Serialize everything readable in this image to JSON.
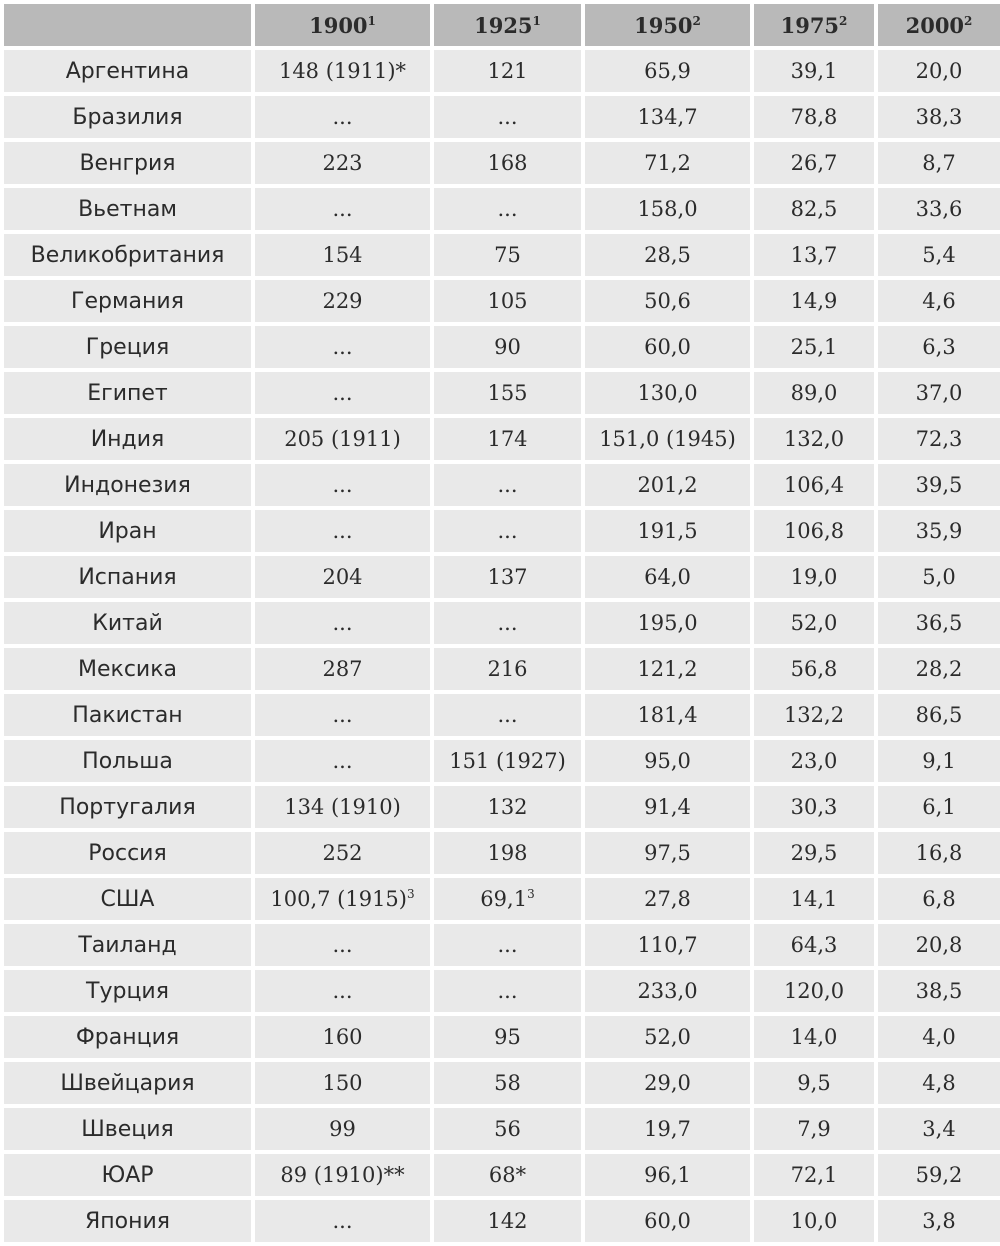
{
  "header": {
    "corner": "",
    "columns": [
      {
        "year": "1900",
        "note": "1"
      },
      {
        "year": "1925",
        "note": "1"
      },
      {
        "year": "1950",
        "note": "2"
      },
      {
        "year": "1975",
        "note": "2"
      },
      {
        "year": "2000",
        "note": "2"
      }
    ]
  },
  "rows": [
    {
      "country": "Аргентина",
      "cells": [
        {
          "v": "148 (1911)*",
          "sup": ""
        },
        {
          "v": "121",
          "sup": ""
        },
        {
          "v": "65,9",
          "sup": ""
        },
        {
          "v": "39,1",
          "sup": ""
        },
        {
          "v": "20,0",
          "sup": ""
        }
      ]
    },
    {
      "country": "Бразилия",
      "cells": [
        {
          "v": "...",
          "sup": ""
        },
        {
          "v": "...",
          "sup": ""
        },
        {
          "v": "134,7",
          "sup": ""
        },
        {
          "v": "78,8",
          "sup": ""
        },
        {
          "v": "38,3",
          "sup": ""
        }
      ]
    },
    {
      "country": "Венгрия",
      "cells": [
        {
          "v": "223",
          "sup": ""
        },
        {
          "v": "168",
          "sup": ""
        },
        {
          "v": "71,2",
          "sup": ""
        },
        {
          "v": "26,7",
          "sup": ""
        },
        {
          "v": "8,7",
          "sup": ""
        }
      ]
    },
    {
      "country": "Вьетнам",
      "cells": [
        {
          "v": "...",
          "sup": ""
        },
        {
          "v": "...",
          "sup": ""
        },
        {
          "v": "158,0",
          "sup": ""
        },
        {
          "v": "82,5",
          "sup": ""
        },
        {
          "v": "33,6",
          "sup": ""
        }
      ]
    },
    {
      "country": "Великобритания",
      "cells": [
        {
          "v": "154",
          "sup": ""
        },
        {
          "v": "75",
          "sup": ""
        },
        {
          "v": "28,5",
          "sup": ""
        },
        {
          "v": "13,7",
          "sup": ""
        },
        {
          "v": "5,4",
          "sup": ""
        }
      ]
    },
    {
      "country": "Германия",
      "cells": [
        {
          "v": "229",
          "sup": ""
        },
        {
          "v": "105",
          "sup": ""
        },
        {
          "v": "50,6",
          "sup": ""
        },
        {
          "v": "14,9",
          "sup": ""
        },
        {
          "v": "4,6",
          "sup": ""
        }
      ]
    },
    {
      "country": "Греция",
      "cells": [
        {
          "v": "...",
          "sup": ""
        },
        {
          "v": "90",
          "sup": ""
        },
        {
          "v": "60,0",
          "sup": ""
        },
        {
          "v": "25,1",
          "sup": ""
        },
        {
          "v": "6,3",
          "sup": ""
        }
      ]
    },
    {
      "country": "Египет",
      "cells": [
        {
          "v": "...",
          "sup": ""
        },
        {
          "v": "155",
          "sup": ""
        },
        {
          "v": "130,0",
          "sup": ""
        },
        {
          "v": "89,0",
          "sup": ""
        },
        {
          "v": "37,0",
          "sup": ""
        }
      ]
    },
    {
      "country": "Индия",
      "cells": [
        {
          "v": "205 (1911)",
          "sup": ""
        },
        {
          "v": "174",
          "sup": ""
        },
        {
          "v": "151,0 (1945)",
          "sup": ""
        },
        {
          "v": "132,0",
          "sup": ""
        },
        {
          "v": "72,3",
          "sup": ""
        }
      ]
    },
    {
      "country": "Индонезия",
      "cells": [
        {
          "v": "...",
          "sup": ""
        },
        {
          "v": "...",
          "sup": ""
        },
        {
          "v": "201,2",
          "sup": ""
        },
        {
          "v": "106,4",
          "sup": ""
        },
        {
          "v": "39,5",
          "sup": ""
        }
      ]
    },
    {
      "country": "Иран",
      "cells": [
        {
          "v": "...",
          "sup": ""
        },
        {
          "v": "...",
          "sup": ""
        },
        {
          "v": "191,5",
          "sup": ""
        },
        {
          "v": "106,8",
          "sup": ""
        },
        {
          "v": "35,9",
          "sup": ""
        }
      ]
    },
    {
      "country": "Испания",
      "cells": [
        {
          "v": "204",
          "sup": ""
        },
        {
          "v": "137",
          "sup": ""
        },
        {
          "v": "64,0",
          "sup": ""
        },
        {
          "v": "19,0",
          "sup": ""
        },
        {
          "v": "5,0",
          "sup": ""
        }
      ]
    },
    {
      "country": "Китай",
      "cells": [
        {
          "v": "...",
          "sup": ""
        },
        {
          "v": "...",
          "sup": ""
        },
        {
          "v": "195,0",
          "sup": ""
        },
        {
          "v": "52,0",
          "sup": ""
        },
        {
          "v": "36,5",
          "sup": ""
        }
      ]
    },
    {
      "country": "Мексика",
      "cells": [
        {
          "v": "287",
          "sup": ""
        },
        {
          "v": "216",
          "sup": ""
        },
        {
          "v": "121,2",
          "sup": ""
        },
        {
          "v": "56,8",
          "sup": ""
        },
        {
          "v": "28,2",
          "sup": ""
        }
      ]
    },
    {
      "country": "Пакистан",
      "cells": [
        {
          "v": "...",
          "sup": ""
        },
        {
          "v": "...",
          "sup": ""
        },
        {
          "v": "181,4",
          "sup": ""
        },
        {
          "v": "132,2",
          "sup": ""
        },
        {
          "v": "86,5",
          "sup": ""
        }
      ]
    },
    {
      "country": "Польша",
      "cells": [
        {
          "v": "...",
          "sup": ""
        },
        {
          "v": "151 (1927)",
          "sup": ""
        },
        {
          "v": "95,0",
          "sup": ""
        },
        {
          "v": "23,0",
          "sup": ""
        },
        {
          "v": "9,1",
          "sup": ""
        }
      ]
    },
    {
      "country": "Португалия",
      "cells": [
        {
          "v": "134 (1910)",
          "sup": ""
        },
        {
          "v": "132",
          "sup": ""
        },
        {
          "v": "91,4",
          "sup": ""
        },
        {
          "v": "30,3",
          "sup": ""
        },
        {
          "v": "6,1",
          "sup": ""
        }
      ]
    },
    {
      "country": "Россия",
      "cells": [
        {
          "v": "252",
          "sup": ""
        },
        {
          "v": "198",
          "sup": ""
        },
        {
          "v": "97,5",
          "sup": ""
        },
        {
          "v": "29,5",
          "sup": ""
        },
        {
          "v": "16,8",
          "sup": ""
        }
      ]
    },
    {
      "country": "США",
      "cells": [
        {
          "v": "100,7 (1915)",
          "sup": "3"
        },
        {
          "v": "69,1",
          "sup": "3"
        },
        {
          "v": "27,8",
          "sup": ""
        },
        {
          "v": "14,1",
          "sup": ""
        },
        {
          "v": "6,8",
          "sup": ""
        }
      ]
    },
    {
      "country": "Таиланд",
      "cells": [
        {
          "v": "...",
          "sup": ""
        },
        {
          "v": "...",
          "sup": ""
        },
        {
          "v": "110,7",
          "sup": ""
        },
        {
          "v": "64,3",
          "sup": ""
        },
        {
          "v": "20,8",
          "sup": ""
        }
      ]
    },
    {
      "country": "Турция",
      "cells": [
        {
          "v": "...",
          "sup": ""
        },
        {
          "v": "...",
          "sup": ""
        },
        {
          "v": "233,0",
          "sup": ""
        },
        {
          "v": "120,0",
          "sup": ""
        },
        {
          "v": "38,5",
          "sup": ""
        }
      ]
    },
    {
      "country": "Франция",
      "cells": [
        {
          "v": "160",
          "sup": ""
        },
        {
          "v": "95",
          "sup": ""
        },
        {
          "v": "52,0",
          "sup": ""
        },
        {
          "v": "14,0",
          "sup": ""
        },
        {
          "v": "4,0",
          "sup": ""
        }
      ]
    },
    {
      "country": "Швейцария",
      "cells": [
        {
          "v": "150",
          "sup": ""
        },
        {
          "v": "58",
          "sup": ""
        },
        {
          "v": "29,0",
          "sup": ""
        },
        {
          "v": "9,5",
          "sup": ""
        },
        {
          "v": "4,8",
          "sup": ""
        }
      ]
    },
    {
      "country": "Швеция",
      "cells": [
        {
          "v": "99",
          "sup": ""
        },
        {
          "v": "56",
          "sup": ""
        },
        {
          "v": "19,7",
          "sup": ""
        },
        {
          "v": "7,9",
          "sup": ""
        },
        {
          "v": "3,4",
          "sup": ""
        }
      ]
    },
    {
      "country": "ЮАР",
      "cells": [
        {
          "v": "89 (1910)**",
          "sup": ""
        },
        {
          "v": "68*",
          "sup": ""
        },
        {
          "v": "96,1",
          "sup": ""
        },
        {
          "v": "72,1",
          "sup": ""
        },
        {
          "v": "59,2",
          "sup": ""
        }
      ]
    },
    {
      "country": "Япония",
      "cells": [
        {
          "v": "...",
          "sup": ""
        },
        {
          "v": "142",
          "sup": ""
        },
        {
          "v": "60,0",
          "sup": ""
        },
        {
          "v": "10,0",
          "sup": ""
        },
        {
          "v": "3,8",
          "sup": ""
        }
      ]
    }
  ],
  "colors": {
    "header_bg": "#b9b9b9",
    "cell_bg": "#e9e9e9",
    "text": "#2b2b2b",
    "grid": "#ffffff"
  }
}
